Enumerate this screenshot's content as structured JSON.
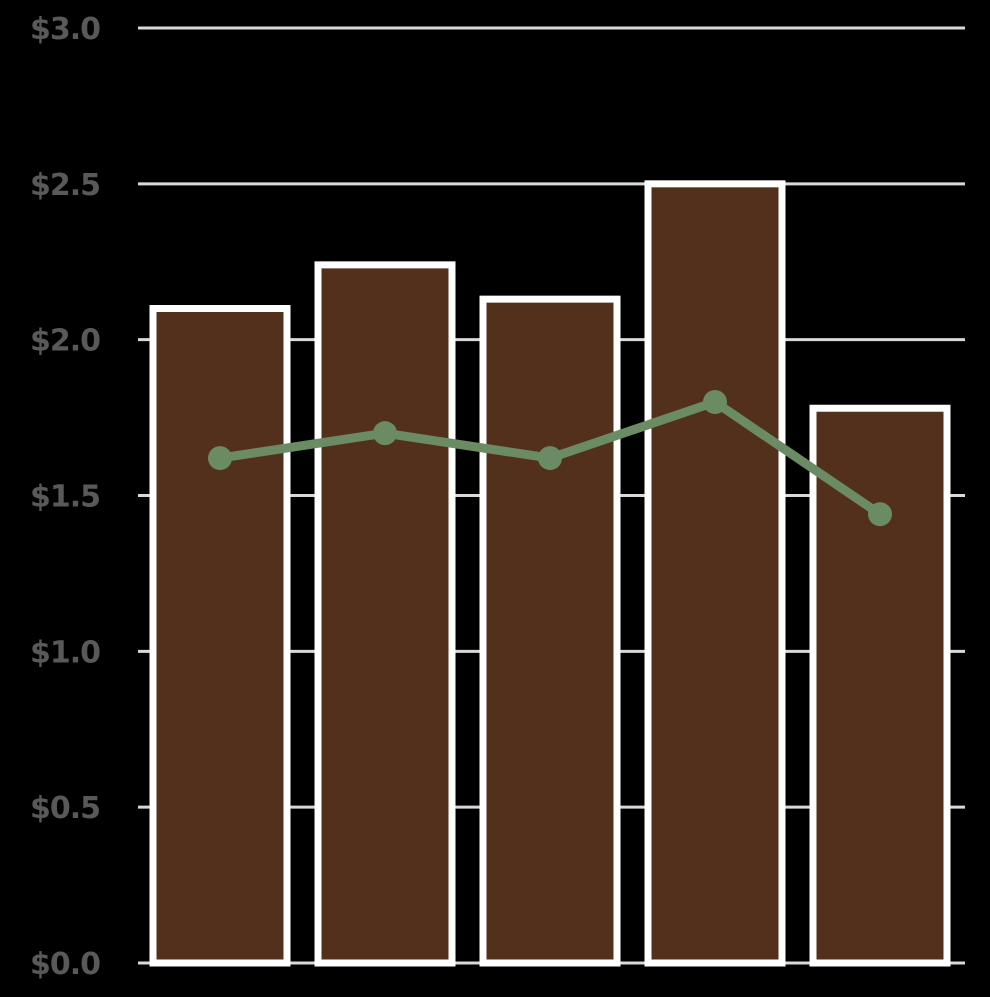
{
  "chart_data": {
    "type": "bar",
    "title": "",
    "xlabel": "",
    "ylabel": "",
    "categories": [
      "",
      "",
      "",
      "",
      ""
    ],
    "ylim": [
      0,
      3.0
    ],
    "grid": true,
    "y_ticks": [
      {
        "value": 0.0,
        "label": "$0.0"
      },
      {
        "value": 0.5,
        "label": "$0.5"
      },
      {
        "value": 1.0,
        "label": "$1.0"
      },
      {
        "value": 1.5,
        "label": "$1.5"
      },
      {
        "value": 2.0,
        "label": "$2.0"
      },
      {
        "value": 2.5,
        "label": "$2.5"
      },
      {
        "value": 3.0,
        "label": "$3.0"
      }
    ],
    "series": [
      {
        "type": "bar",
        "values": [
          2.1,
          2.24,
          2.13,
          2.5,
          1.78
        ]
      },
      {
        "type": "line",
        "values": [
          1.62,
          1.7,
          1.62,
          1.8,
          1.44
        ]
      }
    ],
    "colors": {
      "background": "#000000",
      "bar_fill": "#52301c",
      "bar_outline": "#ffffff",
      "line": "#6a8b64",
      "grid": "#d9d9d9",
      "tick_label": "#595959"
    }
  }
}
